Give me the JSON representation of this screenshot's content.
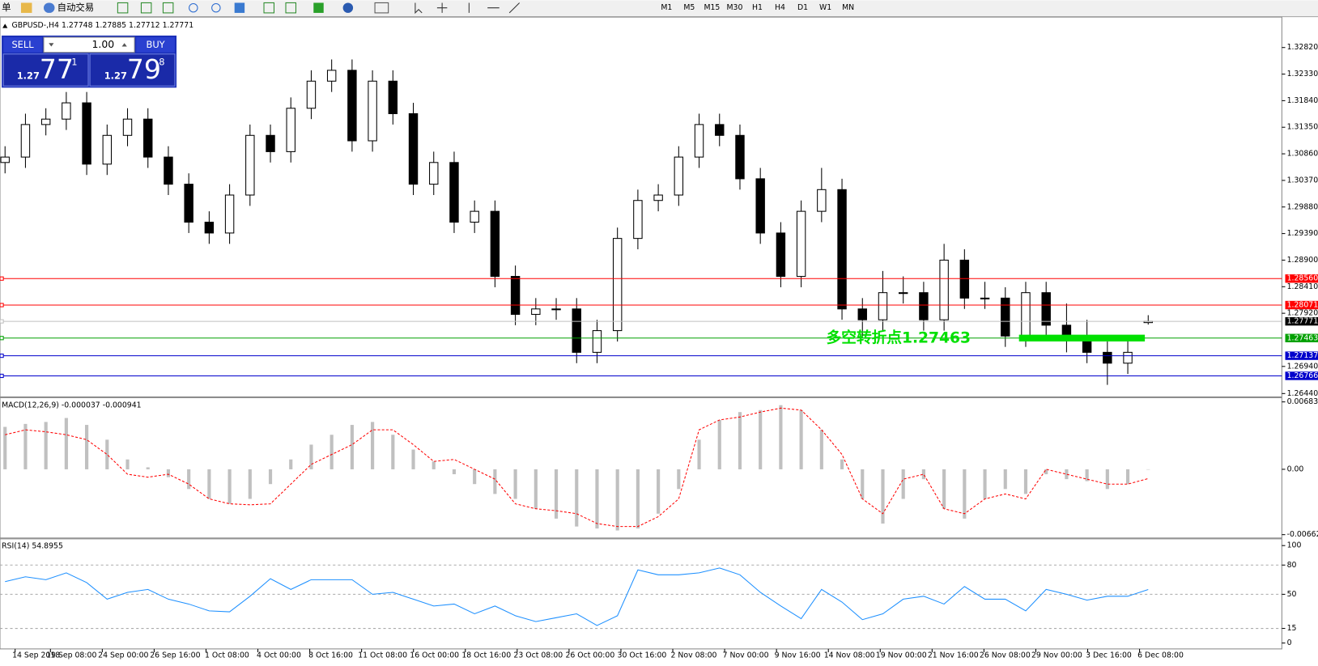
{
  "toolbar": {
    "items": [
      "单",
      "自动交易"
    ],
    "timeframes": [
      "M1",
      "M5",
      "M15",
      "M30",
      "H1",
      "H4",
      "D1",
      "W1",
      "MN"
    ]
  },
  "trade_panel": {
    "sell": "SELL",
    "buy": "BUY",
    "lot": "1.00",
    "bid": {
      "prefix": "1.27",
      "big": "77",
      "sup": "1"
    },
    "ask": {
      "prefix": "1.27",
      "big": "79",
      "sup": "8"
    }
  },
  "chart_data": [
    {
      "type": "candlestick",
      "title": "GBPUSD-,H4  1.27748 1.27885 1.27712 1.27771",
      "open": [
        1.307,
        1.308,
        1.314,
        1.315,
        1.318,
        1.3067,
        1.312,
        1.315,
        1.308,
        1.303,
        1.296,
        1.294,
        1.301,
        1.312,
        1.309,
        1.317,
        1.322,
        1.324,
        1.311,
        1.322,
        1.316,
        1.303,
        1.307,
        1.296,
        1.298,
        1.286,
        1.279,
        1.28,
        1.28,
        1.272,
        1.276,
        1.293,
        1.3,
        1.301,
        1.308,
        1.314,
        1.312,
        1.304,
        1.294,
        1.286,
        1.298,
        1.302,
        1.28,
        1.278,
        1.283,
        1.283,
        1.278,
        1.289,
        1.282,
        1.282,
        1.275,
        1.283,
        1.277,
        1.275,
        1.272,
        1.27,
        1.27748
      ],
      "high": [
        1.31,
        1.316,
        1.317,
        1.32,
        1.32,
        1.314,
        1.317,
        1.317,
        1.31,
        1.305,
        1.298,
        1.303,
        1.314,
        1.314,
        1.319,
        1.324,
        1.326,
        1.326,
        1.324,
        1.324,
        1.318,
        1.309,
        1.309,
        1.3,
        1.3,
        1.288,
        1.282,
        1.282,
        1.282,
        1.278,
        1.295,
        1.302,
        1.303,
        1.31,
        1.316,
        1.316,
        1.314,
        1.306,
        1.296,
        1.3,
        1.306,
        1.304,
        1.282,
        1.287,
        1.286,
        1.285,
        1.292,
        1.291,
        1.285,
        1.284,
        1.285,
        1.285,
        1.281,
        1.278,
        1.274,
        1.275,
        1.27885
      ],
      "low": [
        1.305,
        1.306,
        1.312,
        1.313,
        1.3047,
        1.3047,
        1.31,
        1.306,
        1.301,
        1.294,
        1.292,
        1.292,
        1.299,
        1.307,
        1.307,
        1.315,
        1.32,
        1.309,
        1.309,
        1.314,
        1.301,
        1.301,
        1.294,
        1.294,
        1.284,
        1.277,
        1.277,
        1.278,
        1.27,
        1.27,
        1.274,
        1.291,
        1.298,
        1.299,
        1.306,
        1.31,
        1.302,
        1.292,
        1.284,
        1.284,
        1.296,
        1.278,
        1.275,
        1.276,
        1.281,
        1.276,
        1.276,
        1.28,
        1.28,
        1.273,
        1.273,
        1.275,
        1.272,
        1.27,
        1.266,
        1.268,
        1.27712
      ],
      "close": [
        1.308,
        1.314,
        1.315,
        1.318,
        1.3067,
        1.312,
        1.315,
        1.308,
        1.303,
        1.296,
        1.294,
        1.301,
        1.312,
        1.309,
        1.317,
        1.322,
        1.324,
        1.311,
        1.322,
        1.316,
        1.303,
        1.307,
        1.296,
        1.298,
        1.286,
        1.279,
        1.28,
        1.28,
        1.272,
        1.276,
        1.293,
        1.3,
        1.301,
        1.308,
        1.314,
        1.312,
        1.304,
        1.294,
        1.286,
        1.298,
        1.302,
        1.28,
        1.278,
        1.283,
        1.283,
        1.278,
        1.289,
        1.282,
        1.282,
        1.275,
        1.283,
        1.277,
        1.275,
        1.272,
        1.27,
        1.272,
        1.27771
      ],
      "ylim": [
        1.2641,
        1.3335
      ],
      "yticks": [
        {
          "value": 1.3282,
          "label": "1.32820"
        },
        {
          "value": 1.3233,
          "label": "1.32330"
        },
        {
          "value": 1.3184,
          "label": "1.31840"
        },
        {
          "value": 1.3135,
          "label": "1.31350"
        },
        {
          "value": 1.3086,
          "label": "1.30860"
        },
        {
          "value": 1.3037,
          "label": "1.30370"
        },
        {
          "value": 1.2988,
          "label": "1.29880"
        },
        {
          "value": 1.2939,
          "label": "1.29390"
        },
        {
          "value": 1.289,
          "label": "1.28900"
        },
        {
          "value": 1.2841,
          "label": "1.28410"
        },
        {
          "value": 1.2792,
          "label": "1.27920"
        },
        {
          "value": 1.2694,
          "label": "1.26940"
        },
        {
          "value": 1.2644,
          "label": "1.26440"
        }
      ],
      "levels": [
        {
          "value": 1.2856,
          "label": "1.28560",
          "color": "#ff0000",
          "label_color": "#ff0000"
        },
        {
          "value": 1.28071,
          "label": "1.28071",
          "color": "#ff0000",
          "label_color": "#ff0000"
        },
        {
          "value": 1.27771,
          "label": "1.27771",
          "color": "#c0c0c0",
          "label_color": "#000000"
        },
        {
          "value": 1.27463,
          "label": "1.27463",
          "color": "#00a000",
          "label_color": "#00a000"
        },
        {
          "value": 1.27137,
          "label": "1.27137",
          "color": "#0000cc",
          "label_color": "#0000cc"
        },
        {
          "value": 1.26766,
          "label": "1.26766",
          "color": "#0000cc",
          "label_color": "#0000cc"
        }
      ],
      "annotation": {
        "text": "多空转折点1.27463",
        "color": "#00e000"
      },
      "xtick_labels": [
        "14 Sep 2018",
        "19 Sep 08:00",
        "24 Sep 00:00",
        "26 Sep 16:00",
        "1 Oct 08:00",
        "4 Oct 00:00",
        "8 Oct 16:00",
        "11 Oct 08:00",
        "16 Oct 00:00",
        "18 Oct 16:00",
        "23 Oct 08:00",
        "26 Oct 00:00",
        "30 Oct 16:00",
        "2 Nov 08:00",
        "7 Nov 00:00",
        "9 Nov 16:00",
        "14 Nov 08:00",
        "19 Nov 00:00",
        "21 Nov 16:00",
        "26 Nov 08:00",
        "29 Nov 00:00",
        "3 Dec 16:00",
        "6 Dec 08:00"
      ]
    },
    {
      "type": "macd",
      "title": "MACD(12,26,9) -0.000037 -0.000941",
      "histogram": {
        "color": "#c0c0c0",
        "values": [
          0.0043,
          0.0046,
          0.0048,
          0.0052,
          0.0045,
          0.003,
          0.001,
          0.0002,
          -0.0008,
          -0.002,
          -0.003,
          -0.0035,
          -0.003,
          -0.0015,
          0.001,
          0.0025,
          0.0035,
          0.0045,
          0.0048,
          0.0035,
          0.002,
          0.0008,
          -0.0005,
          -0.0015,
          -0.0025,
          -0.003,
          -0.004,
          -0.005,
          -0.0058,
          -0.006,
          -0.0062,
          -0.006,
          -0.0045,
          -0.002,
          0.003,
          0.005,
          0.0058,
          0.006,
          0.0065,
          0.006,
          0.004,
          0.001,
          -0.003,
          -0.0055,
          -0.003,
          -0.001,
          -0.004,
          -0.005,
          -0.003,
          -0.002,
          -0.0025,
          -0.0005,
          -0.001,
          -0.0012,
          -0.002,
          -0.0015,
          -3.7e-05
        ]
      },
      "signal": {
        "color": "#ff0000",
        "values": [
          0.0035,
          0.004,
          0.0038,
          0.0035,
          0.003,
          0.0015,
          -0.0005,
          -0.0008,
          -0.0005,
          -0.0015,
          -0.003,
          -0.0035,
          -0.0036,
          -0.0035,
          -0.0015,
          0.0005,
          0.0015,
          0.0025,
          0.004,
          0.004,
          0.0025,
          0.0008,
          0.001,
          0.0,
          -0.001,
          -0.0035,
          -0.004,
          -0.0042,
          -0.0045,
          -0.0055,
          -0.0058,
          -0.0058,
          -0.0048,
          -0.003,
          0.004,
          0.005,
          0.0053,
          0.0058,
          0.0062,
          0.006,
          0.004,
          0.0015,
          -0.003,
          -0.0045,
          -0.001,
          -0.0005,
          -0.004,
          -0.0045,
          -0.003,
          -0.0025,
          -0.003,
          0.0,
          -0.0005,
          -0.001,
          -0.0015,
          -0.0015,
          -0.000941
        ]
      },
      "ylim": [
        -0.006624,
        0.006831
      ],
      "yticks": [
        0.006831,
        {
          "value": 0,
          "label": "0.00"
        },
        -0.006624
      ]
    },
    {
      "type": "line",
      "title": "RSI(14) 54.8955",
      "series": [
        {
          "color": "#1e90ff",
          "values": [
            63,
            68,
            65,
            72,
            62,
            45,
            52,
            55,
            45,
            40,
            33,
            32,
            48,
            66,
            55,
            65,
            65,
            65,
            50,
            52,
            45,
            38,
            40,
            30,
            38,
            28,
            22,
            26,
            30,
            18,
            28,
            75,
            70,
            70,
            72,
            77,
            70,
            52,
            38,
            25,
            55,
            42,
            24,
            30,
            45,
            48,
            40,
            58,
            45,
            45,
            33,
            55,
            50,
            44,
            48,
            48,
            54.8955
          ]
        }
      ],
      "ylim": [
        0,
        100
      ],
      "yticks": [
        100,
        80,
        50,
        15,
        0
      ],
      "grid_levels": [
        80,
        50,
        15
      ]
    }
  ]
}
